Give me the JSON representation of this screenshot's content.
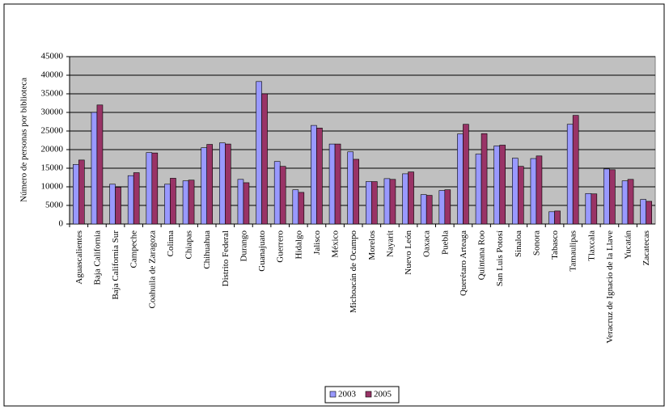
{
  "chart_data": {
    "type": "bar",
    "y_label": "Número de personas por biblioteca",
    "categories": [
      "Aguascalientes",
      "Baja California",
      "Baja California Sur",
      "Campeche",
      "Coahuila de Zaragoza",
      "Colima",
      "Chiapas",
      "Chihuahua",
      "Distrito Federal",
      "Durango",
      "Guanajuato",
      "Guerrero",
      "Hidalgo",
      "Jalisco",
      "México",
      "Michoacán de Ocampo",
      "Morelos",
      "Nayarit",
      "Nuevo León",
      "Oaxaca",
      "Puebla",
      "Querétaro  Arteaga",
      "Quintana Roo",
      "San Luis Potosí",
      "Sinaloa",
      "Sonora",
      "Tabasco",
      "Tamaulipas",
      "Tlaxcala",
      "Veracruz de Ignacio de la Llave",
      "Yucatán",
      "Zacatecas"
    ],
    "series": [
      {
        "name": "2003",
        "color": "#9999ff",
        "values": [
          16000,
          30000,
          10700,
          13000,
          19200,
          10700,
          11600,
          20500,
          21800,
          12000,
          38300,
          16800,
          9200,
          26500,
          21500,
          19400,
          11400,
          12200,
          13500,
          7900,
          9000,
          24200,
          18800,
          21000,
          17700,
          17600,
          3300,
          26800,
          8200,
          14800,
          11600,
          6600
        ]
      },
      {
        "name": "2005",
        "color": "#993366",
        "values": [
          17200,
          32000,
          9900,
          13800,
          19100,
          12300,
          11800,
          21400,
          21500,
          11100,
          35000,
          15500,
          8500,
          25800,
          21500,
          17400,
          11400,
          12000,
          14000,
          7700,
          9200,
          26800,
          24300,
          21200,
          15500,
          18300,
          3500,
          29200,
          8100,
          14600,
          12000,
          6100
        ]
      }
    ],
    "ylim": [
      0,
      45000
    ],
    "yticks": [
      0,
      5000,
      10000,
      15000,
      20000,
      25000,
      30000,
      35000,
      40000,
      45000
    ],
    "grid": true,
    "legend": "bottom"
  }
}
